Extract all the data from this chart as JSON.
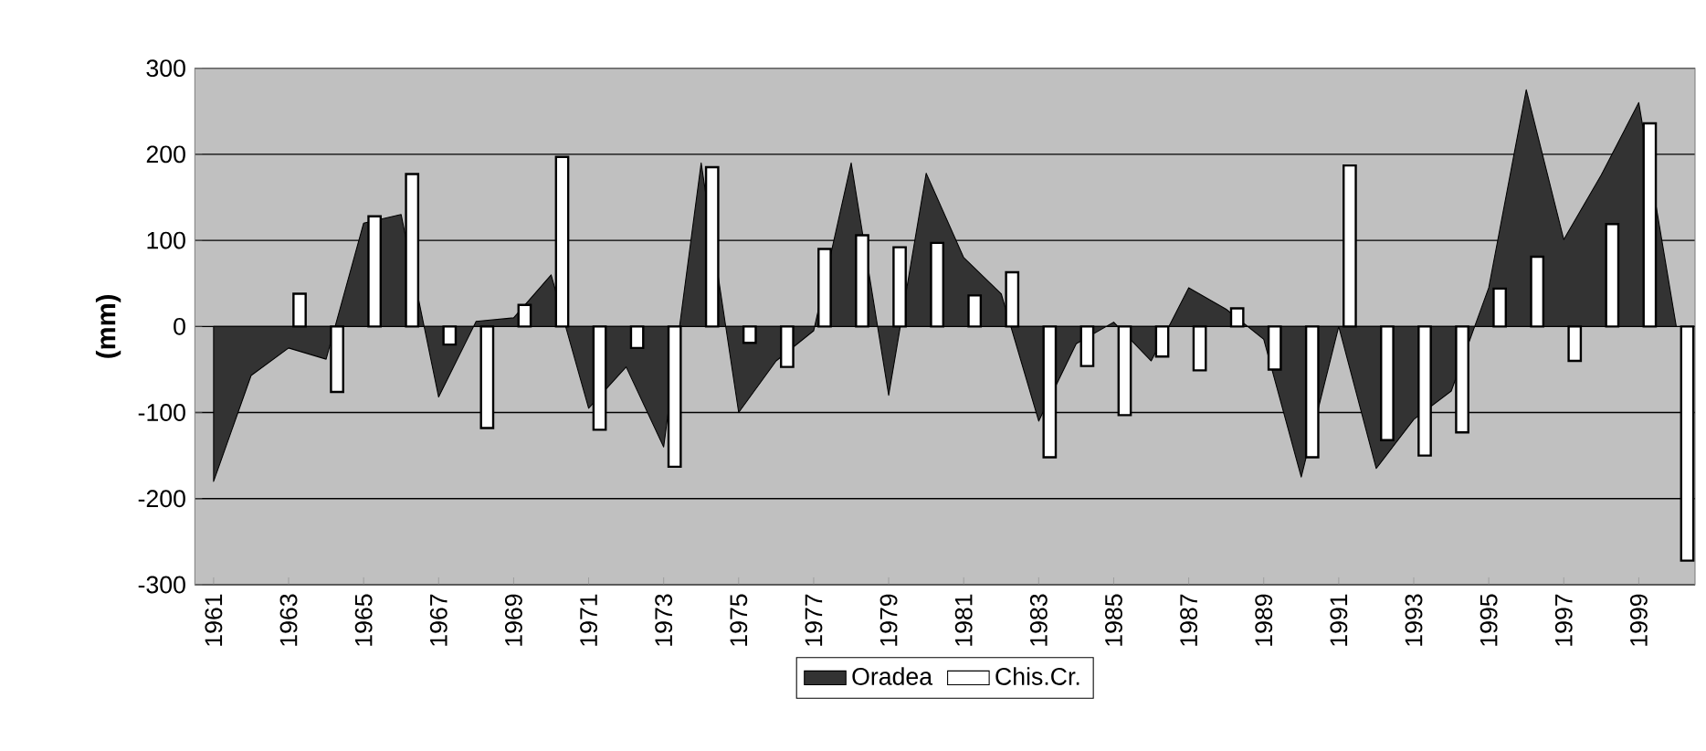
{
  "chart_data": {
    "type": "bar",
    "ylabel": "(mm)",
    "categories": [
      "1961",
      null,
      "1963",
      null,
      "1965",
      null,
      "1967",
      null,
      "1969",
      null,
      "1971",
      null,
      "1973",
      null,
      "1975",
      null,
      "1977",
      null,
      "1979",
      null,
      "1981",
      null,
      "1983",
      null,
      "1985",
      null,
      "1987",
      null,
      "1989",
      null,
      "1991",
      null,
      "1993",
      null,
      "1995",
      null,
      "1997",
      null,
      "1999",
      null
    ],
    "series": [
      {
        "name": "Oradea",
        "type": "area",
        "color": "#333333",
        "values": [
          -180,
          -57,
          -25,
          -38,
          120,
          130,
          -82,
          6,
          10,
          60,
          -95,
          -47,
          -140,
          190,
          -100,
          -40,
          -5,
          190,
          -80,
          178,
          80,
          38,
          -110,
          -20,
          5,
          -40,
          45,
          20,
          -15,
          -175,
          0,
          -165,
          -108,
          -75,
          45,
          275,
          101,
          176,
          260,
          0
        ]
      },
      {
        "name": "Chis.Cr.",
        "color": "#ffffff",
        "values": [
          null,
          null,
          38,
          -76,
          128,
          177,
          -21,
          -118,
          25,
          197,
          -120,
          -25,
          -163,
          185,
          -19,
          -47,
          90,
          106,
          92,
          97,
          36,
          63,
          -152,
          -46,
          -103,
          -35,
          -51,
          21,
          -50,
          -152,
          187,
          -132,
          -150,
          -123,
          44,
          81,
          -40,
          119,
          236,
          -272
        ]
      }
    ],
    "ylim": [
      -300,
      300
    ],
    "yticks": [
      -300,
      -200,
      -100,
      0,
      100,
      200,
      300
    ],
    "grid": "y",
    "legend": "bottom"
  }
}
